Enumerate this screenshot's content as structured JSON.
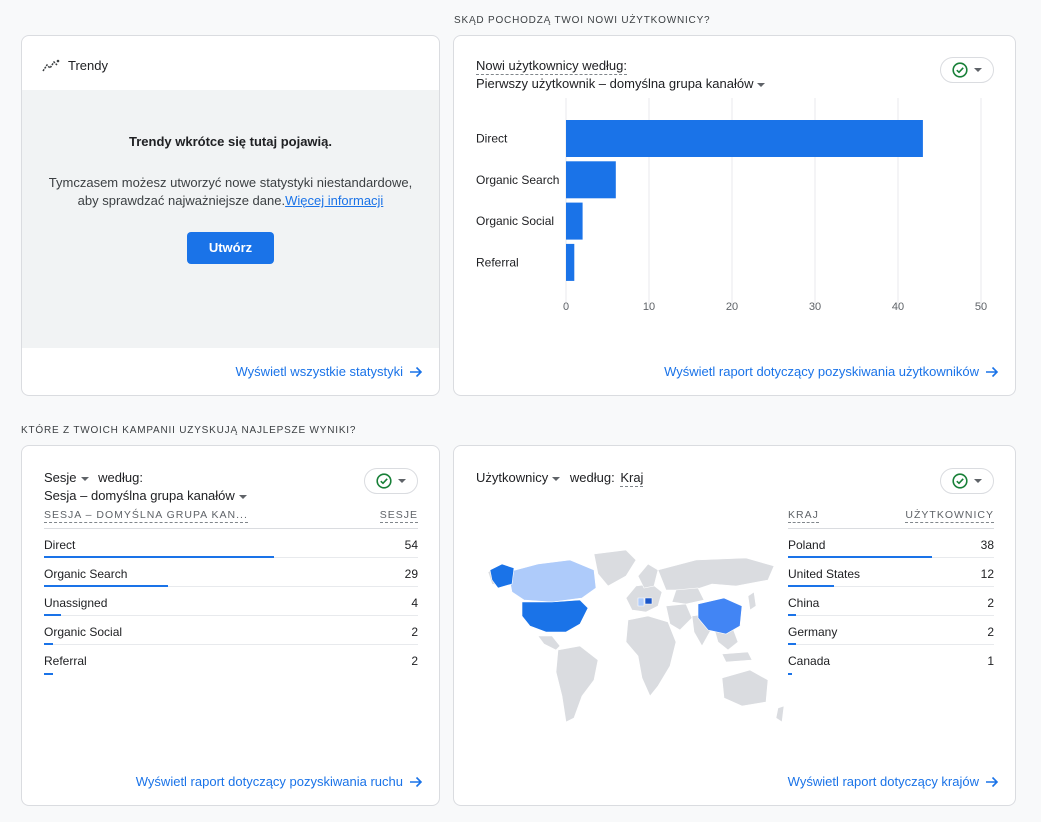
{
  "sections": {
    "new_users_title": "SKĄD POCHODZĄ TWOI NOWI UŻYTKOWNICY?",
    "campaigns_title": "KTÓRE Z TWOICH KAMPANII UZYSKUJĄ NAJLEPSZE WYNIKI?"
  },
  "trends": {
    "title": "Trendy",
    "headline": "Trendy wkrótce się tutaj pojawią.",
    "line1": "Tymczasem możesz utworzyć nowe statystyki niestandardowe,",
    "line2": "aby sprawdzać najważniejsze dane.",
    "link": "Więcej informacji",
    "button": "Utwórz",
    "footer": "Wyświetl wszystkie statystyki"
  },
  "new_users": {
    "metric": "Nowi użytkownicy według:",
    "dimension": "Pierwszy użytkownik – domyślna grupa kanałów",
    "footer": "Wyświetl raport dotyczący pozyskiwania użytkowników"
  },
  "chart_data": {
    "type": "bar",
    "orientation": "horizontal",
    "categories": [
      "Direct",
      "Organic Search",
      "Organic Social",
      "Referral"
    ],
    "values": [
      43,
      6,
      2,
      1
    ],
    "xlim": [
      0,
      50
    ],
    "xticks": [
      0,
      10,
      20,
      30,
      40,
      50
    ],
    "color": "#1a73e8",
    "grid": "vertical"
  },
  "sessions": {
    "metric": "Sesje",
    "by": "według:",
    "dimension": "Sesja – domyślna grupa kanałów",
    "col1": "SESJA – DOMYŚLNA GRUPA KAN...",
    "col2": "SESJE",
    "rows": [
      {
        "label": "Direct",
        "value": "54",
        "share": 1.0
      },
      {
        "label": "Organic Search",
        "value": "29",
        "share": 0.537
      },
      {
        "label": "Unassigned",
        "value": "4",
        "share": 0.074
      },
      {
        "label": "Organic Social",
        "value": "2",
        "share": 0.037
      },
      {
        "label": "Referral",
        "value": "2",
        "share": 0.037
      }
    ],
    "footer": "Wyświetl raport dotyczący pozyskiwania ruchu"
  },
  "countries": {
    "metric": "Użytkownicy",
    "by": "według:",
    "dimension": "Kraj",
    "col1": "KRAJ",
    "col2": "UŻYTKOWNICY",
    "rows": [
      {
        "label": "Poland",
        "value": "38",
        "share": 1.0
      },
      {
        "label": "United States",
        "value": "12",
        "share": 0.316
      },
      {
        "label": "China",
        "value": "2",
        "share": 0.053
      },
      {
        "label": "Germany",
        "value": "2",
        "share": 0.053
      },
      {
        "label": "Canada",
        "value": "1",
        "share": 0.026
      }
    ],
    "footer": "Wyświetl raport dotyczący krajów"
  },
  "colors": {
    "accent": "#1a73e8",
    "status_green": "#188038",
    "map_land": "#dadce0",
    "map_high": "#1a73e8",
    "map_mid": "#4285f4",
    "map_low": "#aecbfa"
  },
  "icons": {
    "trends": "trend-sparkline-icon",
    "status": "check-circle-icon",
    "footer": "arrow-right-icon"
  }
}
